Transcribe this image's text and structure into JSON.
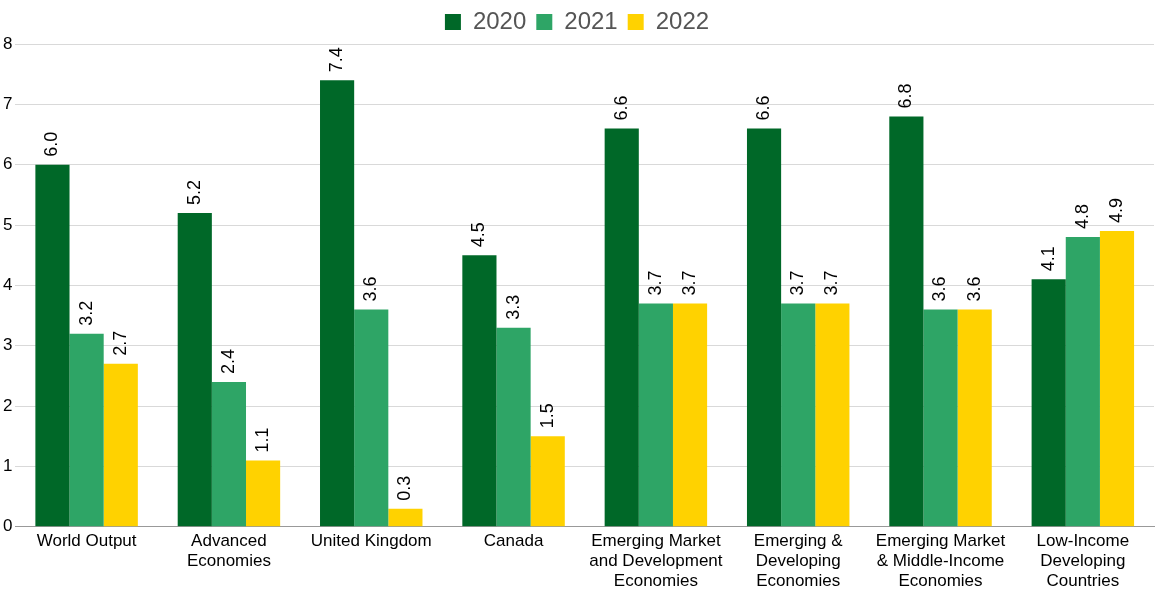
{
  "chart_data": {
    "type": "bar",
    "categories": [
      "World Output",
      "Advanced Economies",
      "United Kingdom",
      "Canada",
      "Emerging Market and Development Economies",
      "Emerging & Developing Economies",
      "Emerging Market & Middle-Income Economies",
      "Low-Income Developing Countries"
    ],
    "series": [
      {
        "name": "2020",
        "color": "#006828",
        "values": [
          6.0,
          5.2,
          7.4,
          4.5,
          6.6,
          6.6,
          6.8,
          4.1
        ],
        "value_labels": [
          "6.0",
          "5.2",
          "7.4",
          "4.5",
          "6.6",
          "6.6",
          "6.8",
          "4.1"
        ]
      },
      {
        "name": "2021",
        "color": "#2ea566",
        "values": [
          3.2,
          2.4,
          3.6,
          3.3,
          3.7,
          3.7,
          3.6,
          4.8
        ],
        "value_labels": [
          "3.2",
          "2.4",
          "3.6",
          "3.3",
          "3.7",
          "3.7",
          "3.6",
          "4.8"
        ]
      },
      {
        "name": "2022",
        "color": "#ffd200",
        "values": [
          2.7,
          1.1,
          0.3,
          1.5,
          3.7,
          3.7,
          3.6,
          4.9
        ],
        "value_labels": [
          "2.7",
          "1.1",
          "0.3",
          "1.5",
          "3.7",
          "3.7",
          "3.6",
          "4.9"
        ]
      }
    ],
    "ylim": [
      0,
      8
    ],
    "yticks": [
      0,
      1,
      2,
      3,
      4,
      5,
      6,
      7,
      8
    ],
    "grid": "y",
    "legend": "top"
  }
}
